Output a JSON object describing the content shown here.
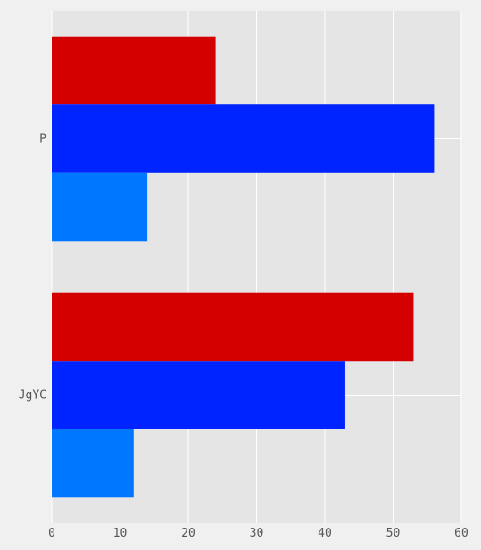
{
  "chart_data": {
    "type": "bar",
    "orientation": "horizontal",
    "categories": [
      "P",
      "JgYC"
    ],
    "series": [
      {
        "color": "#d40000",
        "values": [
          24,
          53
        ]
      },
      {
        "color": "#0024ff",
        "values": [
          56,
          43
        ]
      },
      {
        "color": "#0077ff",
        "values": [
          14,
          12
        ]
      }
    ],
    "xlim": [
      0,
      60
    ],
    "xticks": [
      0,
      10,
      20,
      30,
      40,
      50,
      60
    ],
    "title": "",
    "xlabel": "",
    "ylabel": "",
    "grid": true,
    "legend": "none",
    "colors": {
      "background": "#f0f0f0",
      "plot_background": "#e5e5e5",
      "grid": "#ffffff",
      "text": "#555555"
    }
  }
}
